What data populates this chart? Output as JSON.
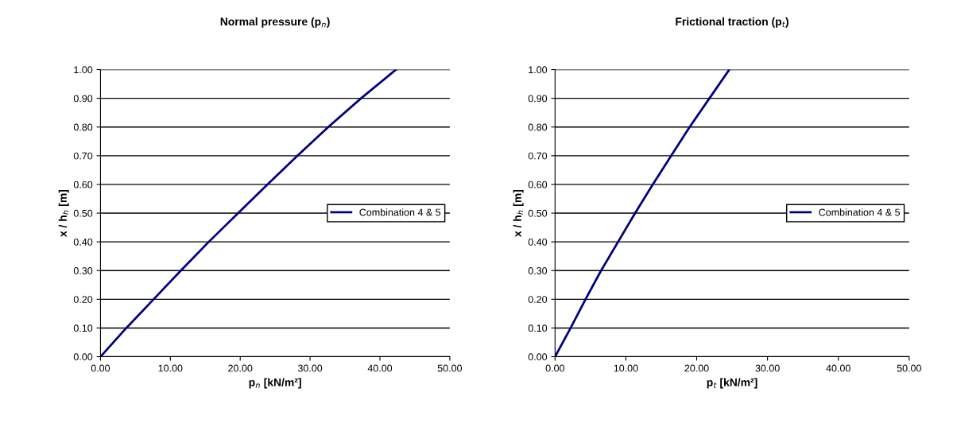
{
  "chart_data": [
    {
      "type": "line",
      "title": "Normal pressure (p$_{n}$)",
      "xlabel": "p$_{n}$ [kN/m²]",
      "ylabel": "x / h$_{h}$ [m]",
      "x": [
        0,
        3.7,
        7.6,
        11.5,
        15.5,
        19.7,
        23.9,
        28.2,
        32.6,
        37.3,
        42.3
      ],
      "series": [
        {
          "name": "Combination 4 & 5",
          "color": "#000080",
          "values": [
            0,
            0.1,
            0.2,
            0.3,
            0.4,
            0.5,
            0.6,
            0.7,
            0.8,
            0.9,
            1.0
          ]
        }
      ],
      "xlim": [
        0,
        50
      ],
      "xticks": [
        {
          "value": 0,
          "label": "0.00"
        },
        {
          "value": 10,
          "label": "10.00"
        },
        {
          "value": 20,
          "label": "20.00"
        },
        {
          "value": 30,
          "label": "30.00"
        },
        {
          "value": 40,
          "label": "40.00"
        },
        {
          "value": 50,
          "label": "50.00"
        }
      ],
      "ylim": [
        0,
        1
      ],
      "yticks": [
        {
          "value": 0,
          "label": "0.00"
        },
        {
          "value": 0.1,
          "label": "0.10"
        },
        {
          "value": 0.2,
          "label": "0.20"
        },
        {
          "value": 0.3,
          "label": "0.30"
        },
        {
          "value": 0.4,
          "label": "0.40"
        },
        {
          "value": 0.5,
          "label": "0.50"
        },
        {
          "value": 0.6,
          "label": "0.60"
        },
        {
          "value": 0.7,
          "label": "0.70"
        },
        {
          "value": 0.8,
          "label": "0.80"
        },
        {
          "value": 0.9,
          "label": "0.90"
        },
        {
          "value": 1.0,
          "label": "1.00"
        }
      ],
      "grid": "y",
      "legend": "right"
    },
    {
      "type": "line",
      "title": "Frictional traction (p$_{t}$)",
      "xlabel": "p$_{t}$ [kN/m²]",
      "ylabel": "x / h$_{h}$ [m]",
      "x": [
        0,
        2.2,
        4.3,
        6.5,
        8.9,
        11.3,
        13.8,
        16.4,
        19.0,
        21.8,
        24.6
      ],
      "series": [
        {
          "name": "Combination 4 & 5",
          "color": "#000080",
          "values": [
            0,
            0.1,
            0.2,
            0.3,
            0.4,
            0.5,
            0.6,
            0.7,
            0.8,
            0.9,
            1.0
          ]
        }
      ],
      "xlim": [
        0,
        50
      ],
      "xticks": [
        {
          "value": 0,
          "label": "0.00"
        },
        {
          "value": 10,
          "label": "10.00"
        },
        {
          "value": 20,
          "label": "20.00"
        },
        {
          "value": 30,
          "label": "30.00"
        },
        {
          "value": 40,
          "label": "40.00"
        },
        {
          "value": 50,
          "label": "50.00"
        }
      ],
      "ylim": [
        0,
        1
      ],
      "yticks": [
        {
          "value": 0,
          "label": "0.00"
        },
        {
          "value": 0.1,
          "label": "0.10"
        },
        {
          "value": 0.2,
          "label": "0.20"
        },
        {
          "value": 0.3,
          "label": "0.30"
        },
        {
          "value": 0.4,
          "label": "0.40"
        },
        {
          "value": 0.5,
          "label": "0.50"
        },
        {
          "value": 0.6,
          "label": "0.60"
        },
        {
          "value": 0.7,
          "label": "0.70"
        },
        {
          "value": 0.8,
          "label": "0.80"
        },
        {
          "value": 0.9,
          "label": "0.90"
        },
        {
          "value": 1.0,
          "label": "1.00"
        }
      ],
      "grid": "y",
      "legend": "right"
    }
  ]
}
